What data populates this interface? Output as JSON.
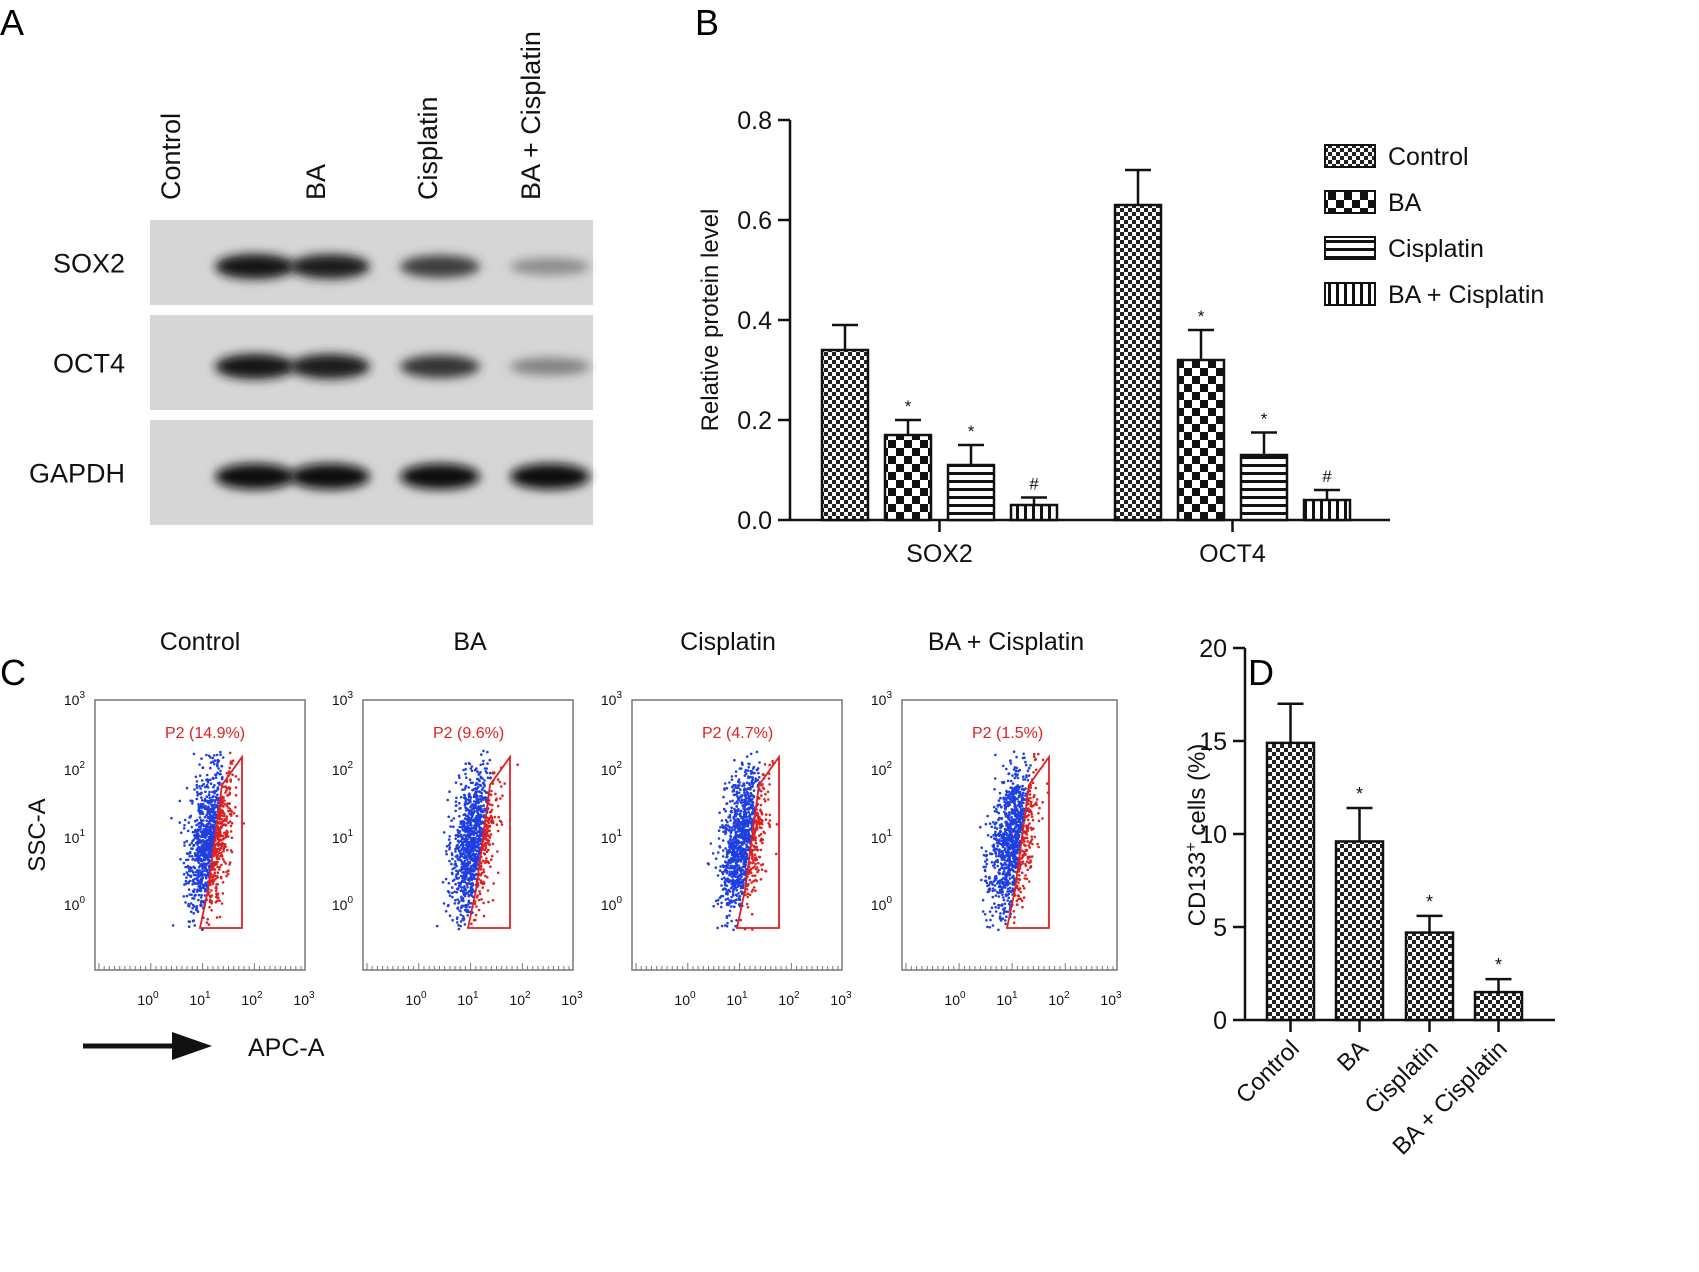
{
  "panel_letters": [
    "A",
    "B",
    "C",
    "D"
  ],
  "panel_a": {
    "lanes": [
      "Control",
      "BA",
      "Cisplatin",
      "BA + Cisplatin"
    ],
    "rows": [
      {
        "name": "SOX2",
        "intensity": [
          0.95,
          0.9,
          0.75,
          0.35
        ]
      },
      {
        "name": "OCT4",
        "intensity": [
          0.95,
          0.92,
          0.78,
          0.4
        ]
      },
      {
        "name": "GAPDH",
        "intensity": [
          1.0,
          1.0,
          1.0,
          1.0
        ]
      }
    ]
  },
  "chart_data": [
    {
      "type": "bar",
      "ylabel": "Relative protein level",
      "ylim": [
        0,
        0.8
      ],
      "yticks": [
        "0.0",
        "0.2",
        "0.4",
        "0.6",
        "0.8"
      ],
      "categories": [
        "SOX2",
        "OCT4"
      ],
      "legend": "right",
      "series": [
        {
          "name": "Control",
          "values": [
            0.34,
            0.63
          ],
          "errors": [
            0.05,
            0.07
          ],
          "marks": [
            "",
            ""
          ],
          "pattern": "checker-fine"
        },
        {
          "name": "BA",
          "values": [
            0.17,
            0.32
          ],
          "errors": [
            0.03,
            0.06
          ],
          "marks": [
            "*",
            "*"
          ],
          "pattern": "checker-coarse"
        },
        {
          "name": "Cisplatin",
          "values": [
            0.11,
            0.13
          ],
          "errors": [
            0.04,
            0.045
          ],
          "marks": [
            "*",
            "*"
          ],
          "pattern": "horizontal"
        },
        {
          "name": "BA + Cisplatin",
          "values": [
            0.03,
            0.04
          ],
          "errors": [
            0.015,
            0.02
          ],
          "marks": [
            "#",
            "#"
          ],
          "pattern": "vertical"
        }
      ]
    },
    {
      "type": "bar",
      "ylabel_main": "CD133",
      "ylabel_sup": "+",
      "ylabel_rest": " cells (%)",
      "ylim": [
        0,
        20
      ],
      "yticks": [
        "0",
        "5",
        "10",
        "15",
        "20"
      ],
      "categories": [
        "Control",
        "BA",
        "Cisplatin",
        "BA + Cisplatin"
      ],
      "values": [
        14.9,
        9.6,
        4.7,
        1.5
      ],
      "errors": [
        2.1,
        1.8,
        0.9,
        0.7
      ],
      "marks": [
        "",
        "*",
        "*",
        "*"
      ]
    }
  ],
  "panel_c": {
    "ylabel": "SSC-A",
    "xlabel": "APC-A",
    "tick_labels": [
      "0",
      "1",
      "2",
      "3"
    ],
    "plots": [
      {
        "title": "Control",
        "gate": "P2 (14.9%)",
        "gate_fraction": 0.149
      },
      {
        "title": "BA",
        "gate": "P2 (9.6%)",
        "gate_fraction": 0.096
      },
      {
        "title": "Cisplatin",
        "gate": "P2 (4.7%)",
        "gate_fraction": 0.047
      },
      {
        "title": "BA + Cisplatin",
        "gate": "P2 (1.5%)",
        "gate_fraction": 0.015
      }
    ],
    "colors": {
      "events": "#1f3fe0",
      "gated": "#e02020"
    }
  }
}
